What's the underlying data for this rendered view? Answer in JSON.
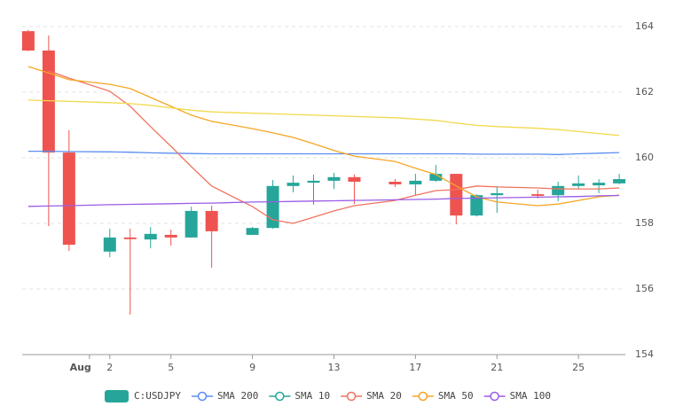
{
  "chart_data": {
    "type": "candlestick",
    "candle_name": "C:USDJPY",
    "up_color": "#26a69a",
    "down_color": "#ef5350",
    "x": [
      -2,
      -1,
      0,
      2,
      3,
      4,
      5,
      6,
      7,
      9,
      10,
      11,
      12,
      13,
      14,
      16,
      17,
      18,
      19,
      20,
      21,
      23,
      24,
      25,
      26,
      27
    ],
    "open": [
      163.86,
      163.27,
      160.16,
      157.14,
      157.57,
      157.51,
      157.65,
      157.57,
      158.38,
      157.65,
      157.86,
      159.14,
      159.24,
      159.3,
      159.41,
      159.27,
      159.19,
      159.3,
      159.51,
      158.24,
      158.86,
      158.89,
      158.86,
      159.14,
      159.16,
      159.22
    ],
    "high": [
      163.9,
      163.73,
      160.84,
      157.84,
      157.84,
      157.89,
      157.81,
      158.51,
      158.54,
      157.89,
      159.32,
      159.46,
      159.49,
      159.54,
      159.49,
      159.35,
      159.51,
      159.78,
      159.51,
      158.89,
      159.14,
      159.03,
      159.27,
      159.46,
      159.35,
      159.51
    ],
    "low": [
      163.25,
      157.92,
      157.16,
      156.97,
      155.22,
      157.24,
      157.32,
      157.57,
      156.65,
      157.65,
      157.84,
      158.95,
      158.57,
      159.05,
      158.59,
      159.11,
      158.86,
      159.27,
      157.97,
      158.21,
      158.32,
      158.76,
      158.68,
      159.05,
      158.92,
      159.19
    ],
    "close": [
      163.27,
      160.16,
      157.35,
      157.57,
      157.52,
      157.68,
      157.57,
      158.38,
      157.76,
      157.86,
      159.14,
      159.24,
      159.3,
      159.41,
      159.27,
      159.19,
      159.3,
      159.51,
      158.24,
      158.86,
      158.92,
      158.84,
      159.14,
      159.22,
      159.24,
      159.35
    ],
    "series": [
      {
        "name": "SMA 200",
        "color": "#5b8def",
        "values": [
          160.2,
          160.2,
          160.19,
          160.18,
          160.17,
          160.15,
          160.14,
          160.13,
          160.12,
          160.12,
          160.12,
          160.12,
          160.12,
          160.12,
          160.12,
          160.12,
          160.12,
          160.12,
          160.12,
          160.11,
          160.11,
          160.11,
          160.1,
          160.12,
          160.14,
          160.16
        ]
      },
      {
        "name": "SMA 10",
        "color": "#26a69a",
        "values": [
          null,
          null,
          null,
          null,
          null,
          null,
          null,
          null,
          null,
          null,
          null,
          null,
          null,
          null,
          null,
          null,
          null,
          null,
          null,
          null,
          null,
          null,
          null,
          null,
          null,
          null
        ]
      },
      {
        "name": "SMA 20",
        "color": "#f0735f",
        "values": [
          null,
          162.65,
          162.43,
          162.03,
          161.57,
          160.95,
          160.35,
          159.73,
          159.14,
          158.51,
          158.11,
          158.0,
          158.19,
          158.38,
          158.54,
          158.7,
          158.86,
          159.0,
          159.03,
          159.14,
          159.11,
          159.08,
          159.05,
          159.05,
          159.05,
          159.08
        ]
      },
      {
        "name": "SMA 50",
        "color": "#f5a623",
        "values": [
          162.78,
          162.59,
          162.38,
          162.24,
          162.11,
          161.84,
          161.57,
          161.3,
          161.11,
          160.89,
          160.76,
          160.62,
          160.43,
          160.22,
          160.05,
          159.89,
          159.68,
          159.49,
          159.14,
          158.81,
          158.65,
          158.54,
          158.59,
          158.7,
          158.81,
          158.86
        ]
      },
      {
        "name": "SMA 100",
        "color": "#9b5de5",
        "values": [
          158.52,
          158.53,
          158.54,
          158.57,
          158.58,
          158.59,
          158.6,
          158.61,
          158.62,
          158.65,
          158.66,
          158.67,
          158.68,
          158.69,
          158.7,
          158.72,
          158.73,
          158.74,
          158.76,
          158.77,
          158.78,
          158.8,
          158.81,
          158.82,
          158.84,
          158.85
        ]
      },
      {
        "color": "#f2d94e",
        "values": [
          161.76,
          161.74,
          161.72,
          161.68,
          161.65,
          161.6,
          161.52,
          161.45,
          161.4,
          161.36,
          161.34,
          161.32,
          161.3,
          161.28,
          161.26,
          161.22,
          161.18,
          161.14,
          161.06,
          160.99,
          160.95,
          160.9,
          160.86,
          160.8,
          160.74,
          160.68
        ]
      }
    ],
    "xlim": [
      -2.3,
      27.3
    ],
    "xticks": [
      {
        "value": 1,
        "label": "Aug"
      },
      2,
      5,
      9,
      13,
      17,
      21,
      25
    ],
    "ylim": [
      154,
      164.54
    ],
    "yticks": [
      154,
      156,
      158,
      160,
      162,
      164
    ],
    "grid": true
  }
}
